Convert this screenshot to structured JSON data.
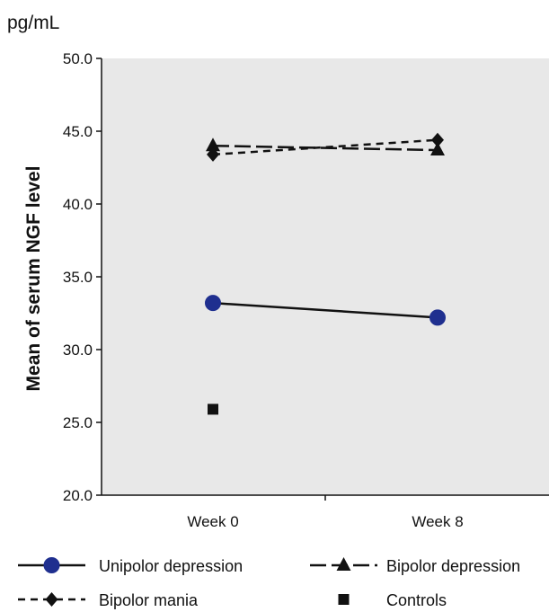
{
  "chart_data": {
    "type": "line",
    "unit_label": "pg/mL",
    "ylabel": "Mean of serum NGF level",
    "xlabel": "",
    "categories": [
      "Week 0",
      "Week 8"
    ],
    "ylim": [
      20,
      50
    ],
    "yticks": [
      "20.0",
      "25.0",
      "30.0",
      "35.0",
      "40.0",
      "45.0",
      "50.0"
    ],
    "background_color": "#e8e8e8",
    "series": [
      {
        "name": "Unipolor depression",
        "values": [
          33.2,
          32.2
        ],
        "marker": "circle",
        "line": "solid",
        "color": "#1f2f8f"
      },
      {
        "name": "Bipolor depression",
        "values": [
          44.0,
          43.7
        ],
        "marker": "triangle",
        "line": "long-dash",
        "color": "#111111"
      },
      {
        "name": "Bipolor mania",
        "values": [
          43.4,
          44.4
        ],
        "marker": "diamond",
        "line": "dashed",
        "color": "#111111"
      },
      {
        "name": "Controls",
        "values": [
          25.9,
          null
        ],
        "marker": "square",
        "line": "none",
        "color": "#111111"
      }
    ]
  }
}
